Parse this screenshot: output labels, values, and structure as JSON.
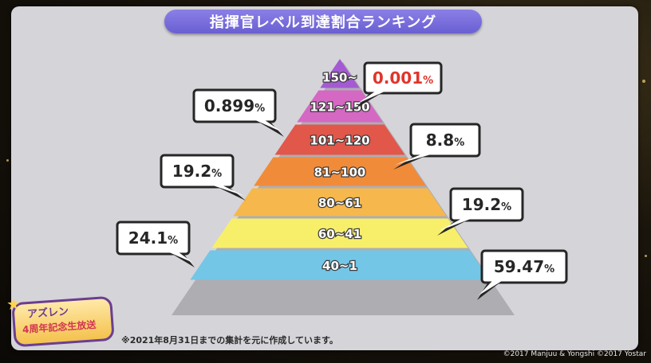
{
  "header": {
    "title": "指揮官レベル到達割合ランキング"
  },
  "chart_data": {
    "type": "pyramid",
    "title": "指揮官レベル到達割合ランキング",
    "unit": "%",
    "tiers": [
      {
        "label": "150~",
        "value": 0.001,
        "color": "#a45ad2",
        "highlight": true
      },
      {
        "label": "121~150",
        "value": 0.899,
        "color": "#d468c3",
        "highlight": false
      },
      {
        "label": "101~120",
        "value": 8.8,
        "color": "#e1574a",
        "highlight": false
      },
      {
        "label": "81~100",
        "value": 19.2,
        "color": "#f08b3a",
        "highlight": false
      },
      {
        "label": "80~61",
        "value": 19.2,
        "color": "#f6b84c",
        "highlight": false
      },
      {
        "label": "60~41",
        "value": 24.1,
        "color": "#f7ef6a",
        "highlight": false
      },
      {
        "label": "40~1",
        "value": 59.47,
        "color": "#73c6e6",
        "highlight": false
      }
    ],
    "callouts": [
      {
        "text": "0.001",
        "unit": "%",
        "highlight": true
      },
      {
        "text": "0.899",
        "unit": "%",
        "highlight": false
      },
      {
        "text": "8.8",
        "unit": "%",
        "highlight": false
      },
      {
        "text": "19.2",
        "unit": "%",
        "highlight": false
      },
      {
        "text": "19.2",
        "unit": "%",
        "highlight": false
      },
      {
        "text": "24.1",
        "unit": "%",
        "highlight": false
      },
      {
        "text": "59.47",
        "unit": "%",
        "highlight": false
      }
    ],
    "highlight_color": "#e0352b"
  },
  "footer": {
    "note": "※2021年8月31日までの集計を元に作成しています。",
    "copyright": "©2017 Manjuu & Yongshi ©2017 Yostar"
  },
  "logo": {
    "line1": "アズレン",
    "line2": "4周年記念生放送"
  }
}
